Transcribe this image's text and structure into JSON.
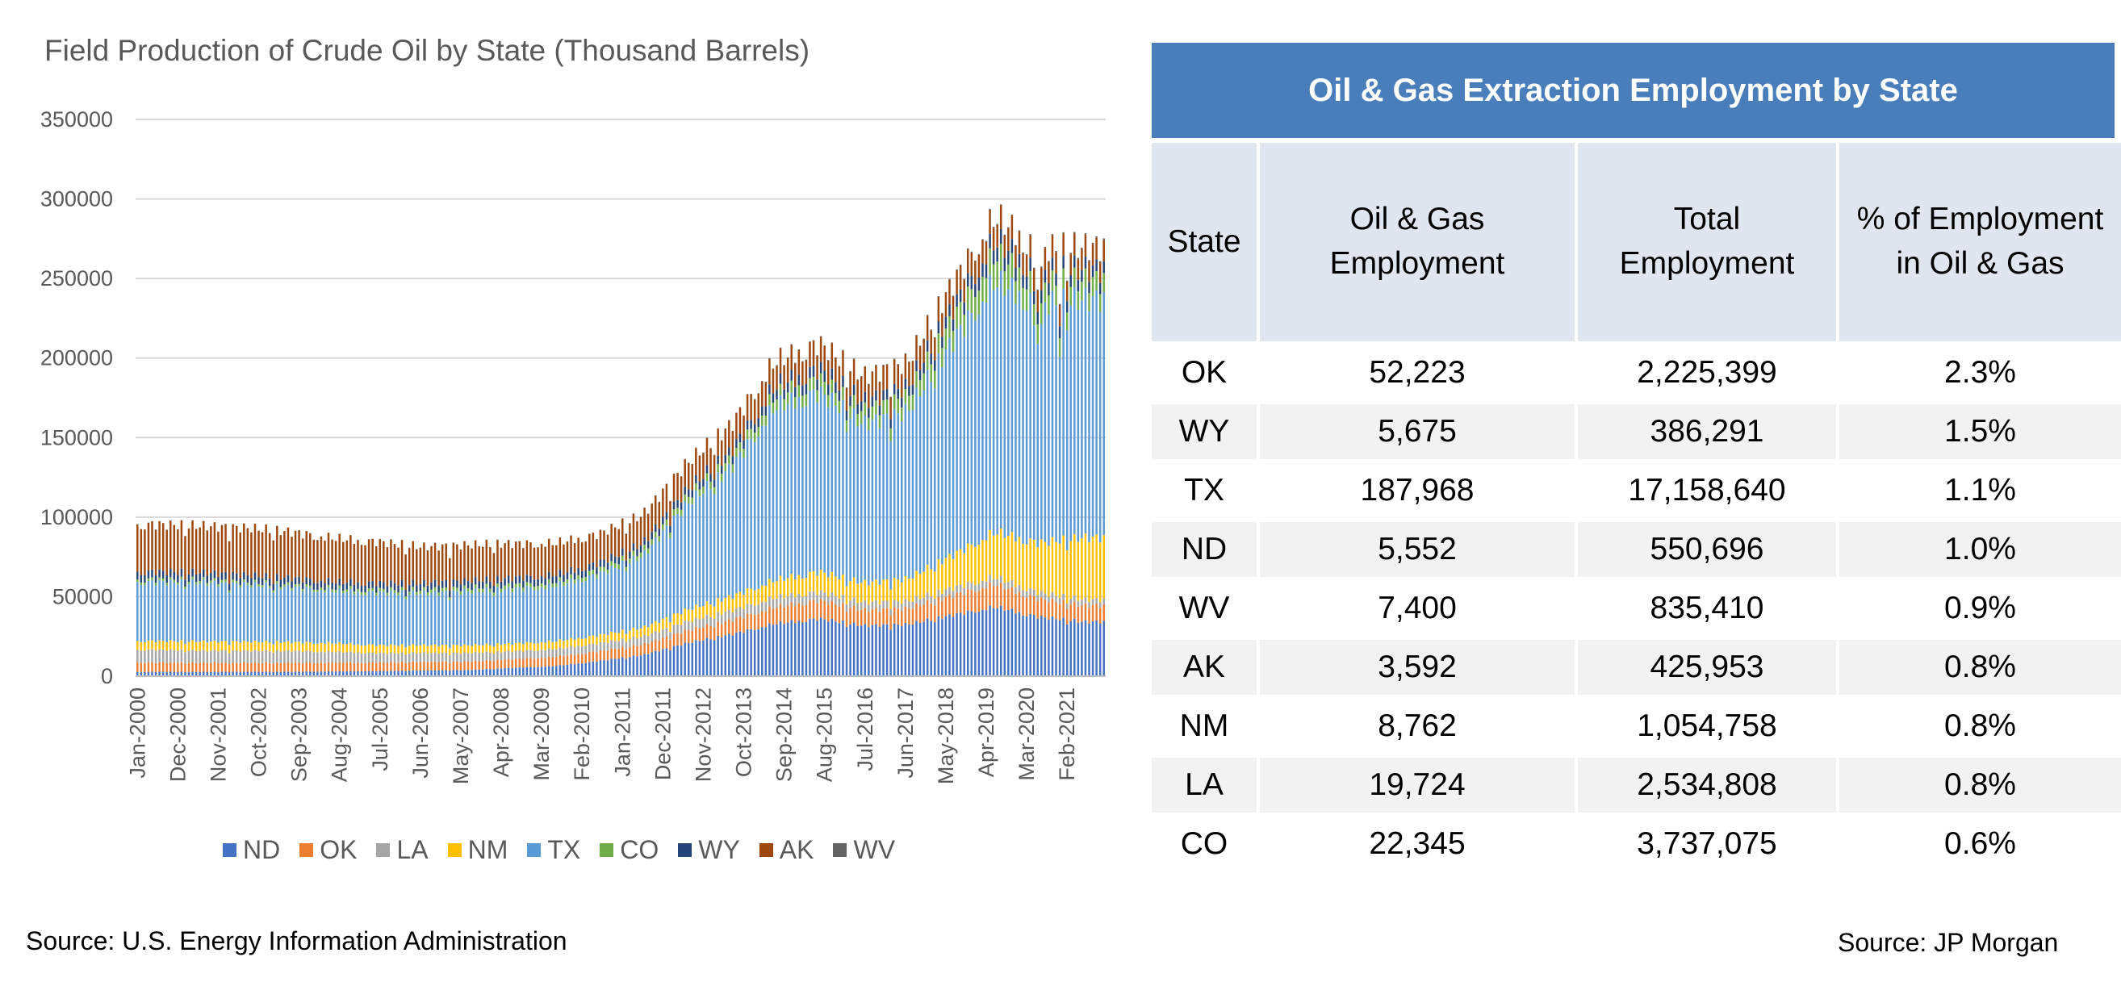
{
  "chart": {
    "title": "Field Production of Crude Oil by State (Thousand Barrels)",
    "source": "Source: U.S. Energy Information Administration"
  },
  "chart_data": {
    "type": "bar",
    "stacked": true,
    "title": "Field Production of Crude Oil by State (Thousand Barrels)",
    "ylim": [
      0,
      350000
    ],
    "yticks": [
      0,
      50000,
      100000,
      150000,
      200000,
      250000,
      300000,
      350000
    ],
    "xticks": [
      "Jan-2000",
      "Dec-2000",
      "Nov-2001",
      "Oct-2002",
      "Sep-2003",
      "Aug-2004",
      "Jul-2005",
      "Jun-2006",
      "May-2007",
      "Apr-2008",
      "Mar-2009",
      "Feb-2010",
      "Jan-2011",
      "Dec-2011",
      "Nov-2012",
      "Oct-2013",
      "Sep-2014",
      "Aug-2015",
      "Jul-2016",
      "Jun-2017",
      "May-2018",
      "Apr-2019",
      "Mar-2020",
      "Feb-2021"
    ],
    "grid": "horizontal",
    "legend_position": "bottom",
    "series_names": [
      "ND",
      "OK",
      "LA",
      "NM",
      "TX",
      "CO",
      "WY",
      "AK",
      "WV"
    ],
    "colors": [
      "#4472c4",
      "#ed7d31",
      "#a5a5a5",
      "#ffc000",
      "#5b9bd5",
      "#70ad47",
      "#264478",
      "#9e480e",
      "#636363"
    ],
    "annual_data": {
      "years": [
        2000,
        2001,
        2002,
        2003,
        2004,
        2005,
        2006,
        2007,
        2008,
        2009,
        2010,
        2011,
        2012,
        2013,
        2014,
        2015,
        2016,
        2017,
        2018,
        2019,
        2020,
        2021
      ],
      "ND": [
        2700,
        2700,
        2800,
        2800,
        3000,
        3200,
        3600,
        3800,
        5200,
        6300,
        9500,
        13300,
        20800,
        26200,
        33000,
        36200,
        31800,
        32500,
        38300,
        43600,
        37200,
        34200
      ],
      "OK": [
        5800,
        5700,
        5600,
        5600,
        5500,
        5300,
        5400,
        5300,
        5400,
        5800,
        6200,
        6600,
        7900,
        9000,
        10500,
        11500,
        9800,
        10000,
        12300,
        14300,
        11200,
        10200
      ],
      "LA": [
        8100,
        7700,
        7600,
        7500,
        6900,
        6000,
        5600,
        5500,
        5000,
        5000,
        5000,
        5000,
        5600,
        6000,
        6000,
        5400,
        4800,
        4500,
        4600,
        4500,
        4000,
        3700
      ],
      "NM": [
        5500,
        5700,
        5700,
        5500,
        5400,
        5000,
        4900,
        4800,
        4800,
        4800,
        5000,
        5500,
        7400,
        8800,
        10900,
        12500,
        12200,
        14100,
        20500,
        28200,
        31300,
        39000
      ],
      "TX": [
        37100,
        37000,
        35800,
        34500,
        32800,
        33000,
        32600,
        33800,
        34200,
        34800,
        38300,
        45100,
        66400,
        81000,
        109000,
        113000,
        100000,
        105000,
        134000,
        158000,
        150000,
        150000
      ],
      "CO": [
        1600,
        1600,
        1500,
        1500,
        1600,
        1800,
        2000,
        2200,
        2400,
        2500,
        2700,
        3200,
        4100,
        5300,
        7000,
        8000,
        8000,
        9300,
        13300,
        16600,
        12600,
        11800
      ],
      "WY": [
        4900,
        4800,
        4600,
        4400,
        4300,
        4300,
        4400,
        4500,
        4600,
        4500,
        4500,
        4600,
        4800,
        5200,
        6100,
        7000,
        6300,
        6300,
        7600,
        9000,
        8100,
        7200
      ],
      "AK": [
        29700,
        29200,
        29600,
        29000,
        27200,
        25800,
        22700,
        22400,
        21700,
        19700,
        18100,
        17800,
        16600,
        16300,
        15400,
        15400,
        15400,
        15000,
        14900,
        14500,
        13800,
        13500
      ],
      "WV": [
        110,
        110,
        110,
        120,
        120,
        140,
        180,
        190,
        200,
        200,
        230,
        260,
        280,
        300,
        350,
        420,
        430,
        440,
        500,
        600,
        650,
        700
      ]
    }
  },
  "table": {
    "title": "Oil & Gas Extraction Employment by State",
    "columns": [
      "State",
      "Oil & Gas\nEmployment",
      "Total\nEmployment",
      "% of Employment\nin Oil & Gas"
    ],
    "rows": [
      [
        "OK",
        "52,223",
        "2,225,399",
        "2.3%"
      ],
      [
        "WY",
        "5,675",
        "386,291",
        "1.5%"
      ],
      [
        "TX",
        "187,968",
        "17,158,640",
        "1.1%"
      ],
      [
        "ND",
        "5,552",
        "550,696",
        "1.0%"
      ],
      [
        "WV",
        "7,400",
        "835,410",
        "0.9%"
      ],
      [
        "AK",
        "3,592",
        "425,953",
        "0.8%"
      ],
      [
        "NM",
        "8,762",
        "1,054,758",
        "0.8%"
      ],
      [
        "LA",
        "19,724",
        "2,534,808",
        "0.8%"
      ],
      [
        "CO",
        "22,345",
        "3,737,075",
        "0.6%"
      ]
    ],
    "source": "Source: JP Morgan"
  }
}
